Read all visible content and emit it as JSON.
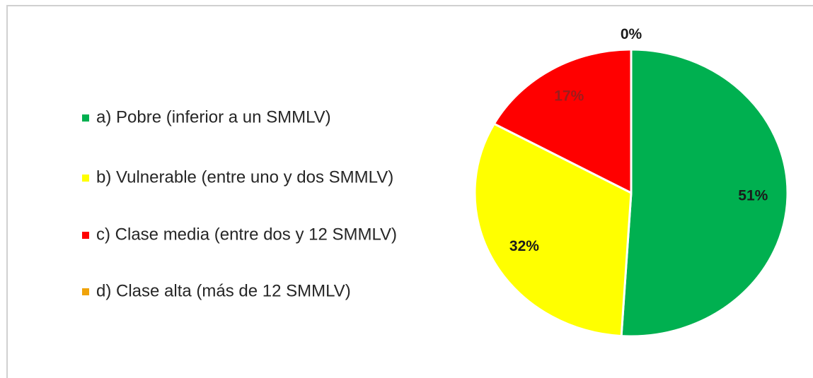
{
  "chart_data": {
    "type": "pie",
    "categories": [
      "a) Pobre (inferior a un SMMLV)",
      "b) Vulnerable (entre uno y dos SMMLV)",
      "c) Clase media (entre dos y 12 SMMLV)",
      "d) Clase alta (más de 12 SMMLV)"
    ],
    "values": [
      51,
      32,
      17,
      0
    ],
    "value_labels": [
      "51%",
      "32%",
      "17%",
      "0%"
    ],
    "colors": [
      "#00b050",
      "#ffff00",
      "#ff0000",
      "#f0a30a"
    ],
    "label_colors": [
      "#1a1a1a",
      "#1a1a1a",
      "#9c1c1c",
      "#1a1a1a"
    ],
    "legend": "left"
  }
}
